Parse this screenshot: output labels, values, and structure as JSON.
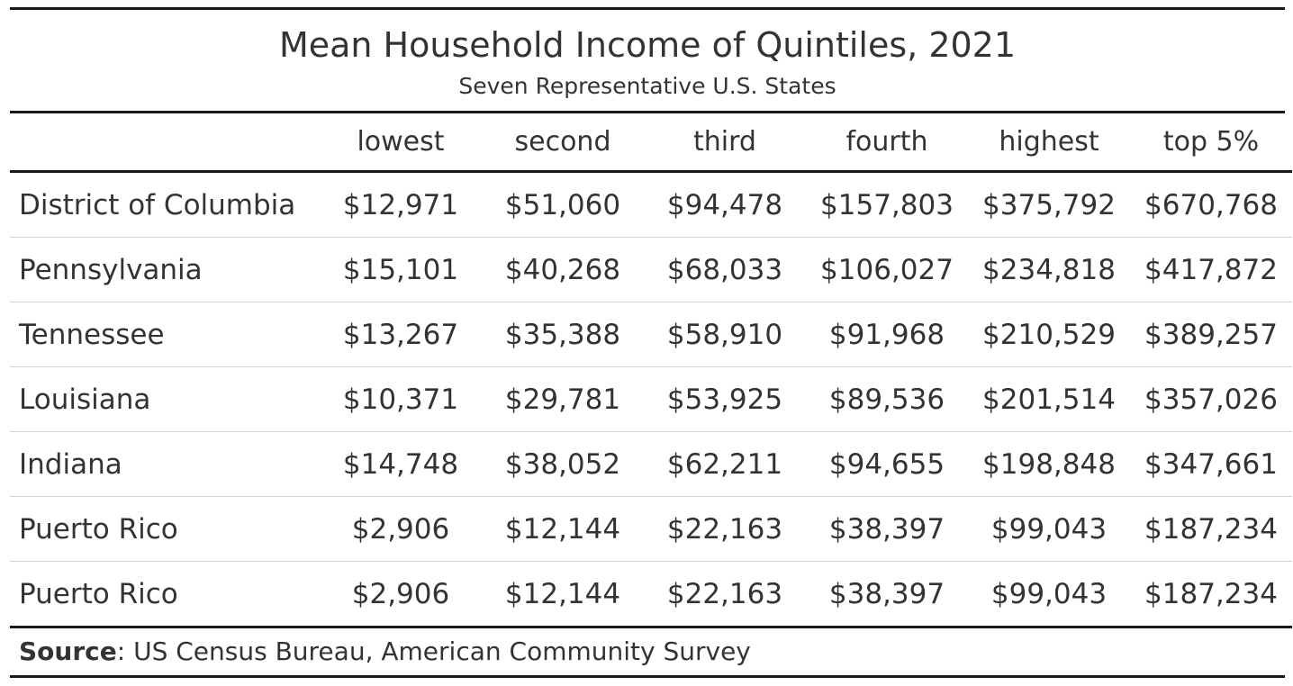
{
  "title": "Mean Household Income of Quintiles, 2021",
  "subtitle": "Seven Representative U.S. States",
  "columns": [
    "",
    "lowest",
    "second",
    "third",
    "fourth",
    "highest",
    "top 5%"
  ],
  "rows": [
    {
      "state": "District of Columbia",
      "values": [
        "$12,971",
        "$51,060",
        "$94,478",
        "$157,803",
        "$375,792",
        "$670,768"
      ]
    },
    {
      "state": "Pennsylvania",
      "values": [
        "$15,101",
        "$40,268",
        "$68,033",
        "$106,027",
        "$234,818",
        "$417,872"
      ]
    },
    {
      "state": "Tennessee",
      "values": [
        "$13,267",
        "$35,388",
        "$58,910",
        "$91,968",
        "$210,529",
        "$389,257"
      ]
    },
    {
      "state": "Louisiana",
      "values": [
        "$10,371",
        "$29,781",
        "$53,925",
        "$89,536",
        "$201,514",
        "$357,026"
      ]
    },
    {
      "state": "Indiana",
      "values": [
        "$14,748",
        "$38,052",
        "$62,211",
        "$94,655",
        "$198,848",
        "$347,661"
      ]
    },
    {
      "state": "Puerto Rico",
      "values": [
        "$2,906",
        "$12,144",
        "$22,163",
        "$38,397",
        "$99,043",
        "$187,234"
      ]
    },
    {
      "state": "Puerto Rico",
      "values": [
        "$2,906",
        "$12,144",
        "$22,163",
        "$38,397",
        "$99,043",
        "$187,234"
      ]
    }
  ],
  "source": {
    "label": "Source",
    "text": ": US Census Bureau, American Community Survey"
  }
}
